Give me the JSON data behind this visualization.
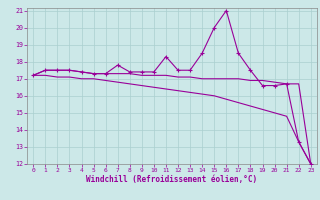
{
  "xlabel": "Windchill (Refroidissement éolien,°C)",
  "x": [
    0,
    1,
    2,
    3,
    4,
    5,
    6,
    7,
    8,
    9,
    10,
    11,
    12,
    13,
    14,
    15,
    16,
    17,
    18,
    19,
    20,
    21,
    22,
    23
  ],
  "line1": [
    17.2,
    17.5,
    17.5,
    17.5,
    17.4,
    17.3,
    17.3,
    17.8,
    17.4,
    17.4,
    17.4,
    18.3,
    17.5,
    17.5,
    18.5,
    20.0,
    21.0,
    18.5,
    17.5,
    16.6,
    16.6,
    16.7,
    13.3,
    12.0
  ],
  "line2": [
    17.2,
    17.5,
    17.5,
    17.5,
    17.4,
    17.3,
    17.3,
    17.3,
    17.3,
    17.2,
    17.2,
    17.2,
    17.1,
    17.1,
    17.0,
    17.0,
    17.0,
    17.0,
    16.9,
    16.9,
    16.8,
    16.7,
    16.7,
    12.0
  ],
  "line3": [
    17.2,
    17.2,
    17.1,
    17.1,
    17.0,
    17.0,
    16.9,
    16.8,
    16.7,
    16.6,
    16.5,
    16.4,
    16.3,
    16.2,
    16.1,
    16.0,
    15.8,
    15.6,
    15.4,
    15.2,
    15.0,
    14.8,
    13.3,
    12.0
  ],
  "line_color": "#990099",
  "bg_color": "#cce8e8",
  "grid_color": "#aacfcf",
  "ylim": [
    12,
    21
  ],
  "xlim": [
    -0.5,
    23.5
  ],
  "yticks": [
    12,
    13,
    14,
    15,
    16,
    17,
    18,
    19,
    20,
    21
  ],
  "xticks": [
    0,
    1,
    2,
    3,
    4,
    5,
    6,
    7,
    8,
    9,
    10,
    11,
    12,
    13,
    14,
    15,
    16,
    17,
    18,
    19,
    20,
    21,
    22,
    23
  ]
}
